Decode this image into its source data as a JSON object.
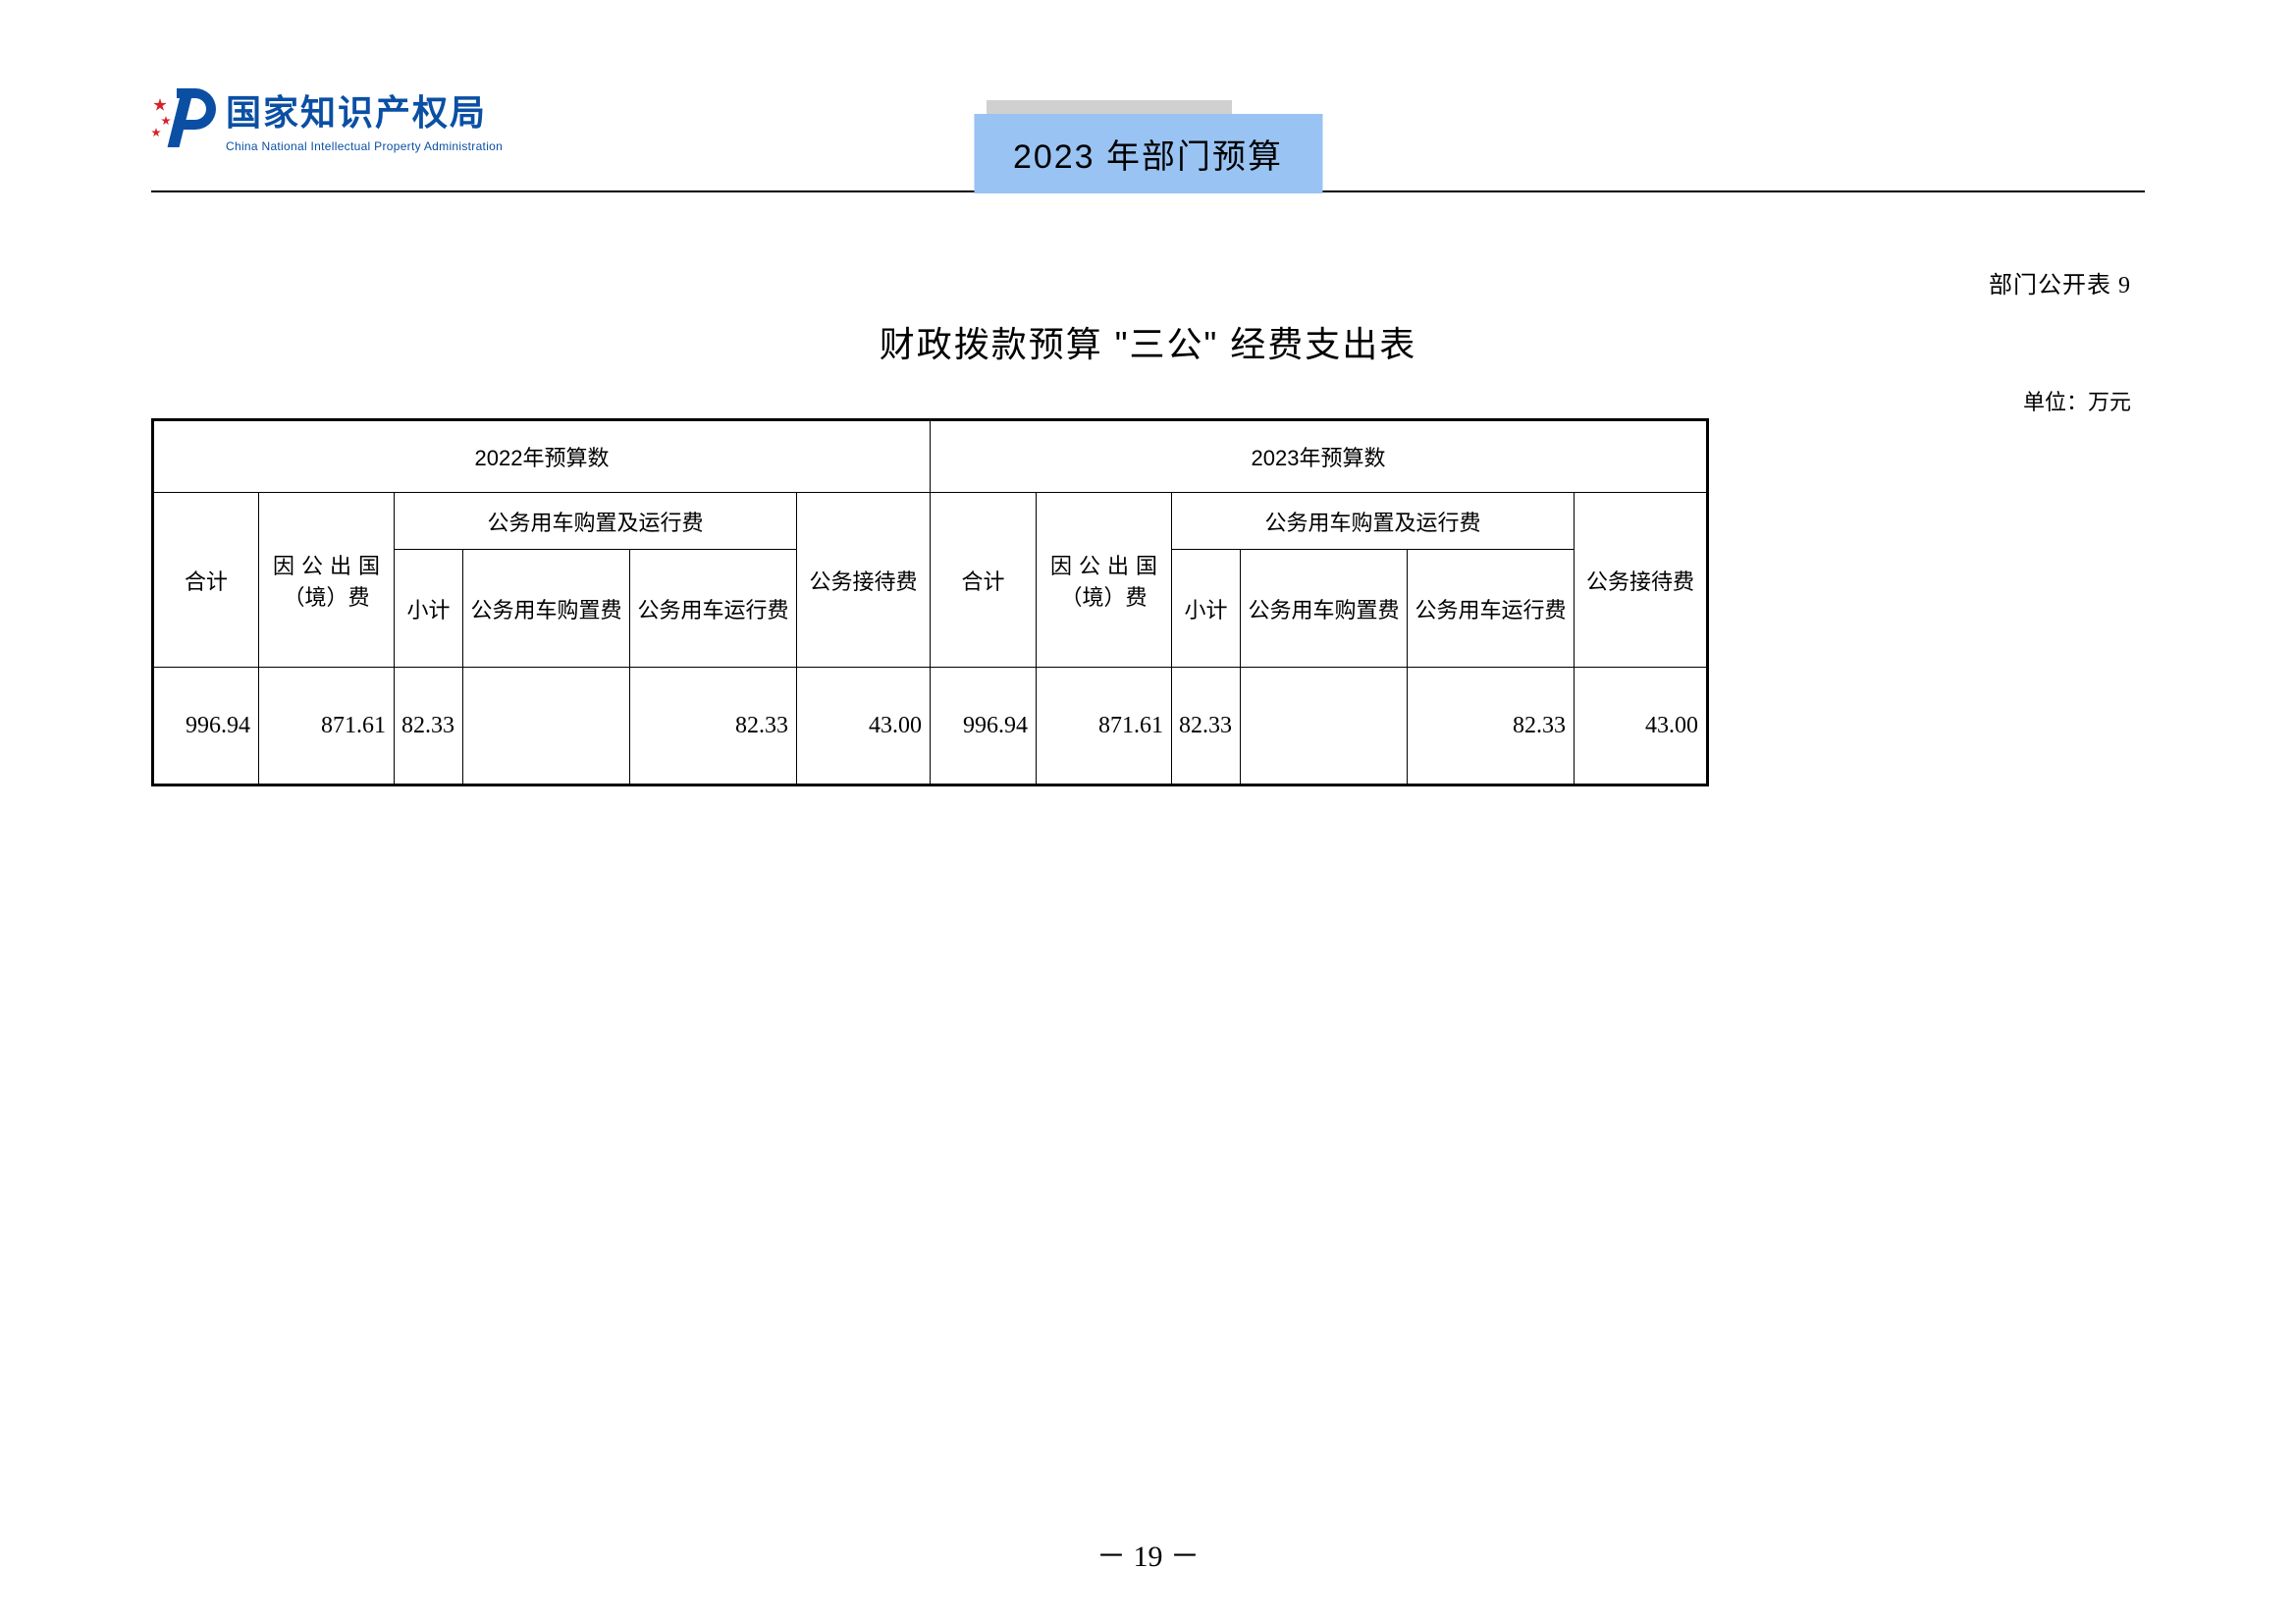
{
  "header": {
    "logo_cn": "国家知识产权局",
    "logo_en": "China National Intellectual Property Administration",
    "doc_title": "2023 年部门预算"
  },
  "meta": {
    "table_ref": "部门公开表 9",
    "page_title": "财政拨款预算 \"三公\" 经费支出表",
    "unit": "单位：万元",
    "page_number": "－ 19 －"
  },
  "table": {
    "year_2022": "2022年预算数",
    "year_2023": "2023年预算数",
    "vehicle_group": "公务用车购置及运行费",
    "cols": {
      "heji": "合计",
      "chuguo_l1": "因 公 出 国",
      "chuguo_l2": "（境）费",
      "xiaoji": "小计",
      "gouzhi": "公务用车购置费",
      "yunxing": "公务用车运行费",
      "jiedai": "公务接待费"
    },
    "row_2022": {
      "heji": "996.94",
      "chuguo": "871.61",
      "xiaoji": "82.33",
      "gouzhi": "",
      "yunxing": "82.33",
      "jiedai": "43.00"
    },
    "row_2023": {
      "heji": "996.94",
      "chuguo": "871.61",
      "xiaoji": "82.33",
      "gouzhi": "",
      "yunxing": "82.33",
      "jiedai": "43.00"
    }
  }
}
